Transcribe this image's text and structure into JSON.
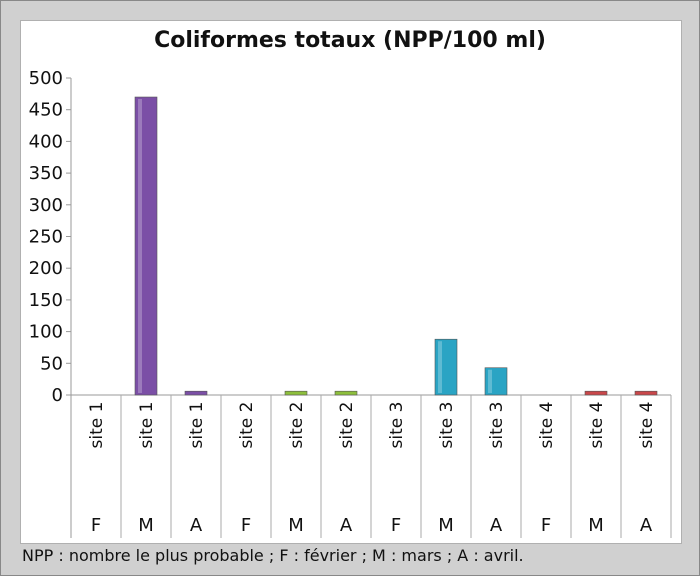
{
  "chart_data": {
    "type": "bar",
    "title": "Coliformes totaux (NPP/100 ml)",
    "xlabel": "",
    "ylabel": "",
    "ylim": [
      0,
      500
    ],
    "yticks": [
      0,
      50,
      100,
      150,
      200,
      250,
      300,
      350,
      400,
      450,
      500
    ],
    "grid": false,
    "categories": [
      {
        "site": "site 1",
        "month": "F",
        "value": 0,
        "color": "#7b4fa6"
      },
      {
        "site": "site 1",
        "month": "M",
        "value": 470,
        "color": "#7b4fa6"
      },
      {
        "site": "site 1",
        "month": "A",
        "value": 6,
        "color": "#7b4fa6"
      },
      {
        "site": "site 2",
        "month": "F",
        "value": 0,
        "color": "#8dbf3c"
      },
      {
        "site": "site 2",
        "month": "M",
        "value": 6,
        "color": "#8dbf3c"
      },
      {
        "site": "site 2",
        "month": "A",
        "value": 6,
        "color": "#8dbf3c"
      },
      {
        "site": "site 3",
        "month": "F",
        "value": 0,
        "color": "#2aa4c4"
      },
      {
        "site": "site 3",
        "month": "M",
        "value": 88,
        "color": "#2aa4c4"
      },
      {
        "site": "site 3",
        "month": "A",
        "value": 43,
        "color": "#2aa4c4"
      },
      {
        "site": "site 4",
        "month": "F",
        "value": 0,
        "color": "#c9474a"
      },
      {
        "site": "site 4",
        "month": "M",
        "value": 6,
        "color": "#c9474a"
      },
      {
        "site": "site 4",
        "month": "A",
        "value": 6,
        "color": "#c9474a"
      }
    ]
  },
  "footnote": "NPP : nombre le plus probable ; F : février ; M : mars ; A : avril."
}
